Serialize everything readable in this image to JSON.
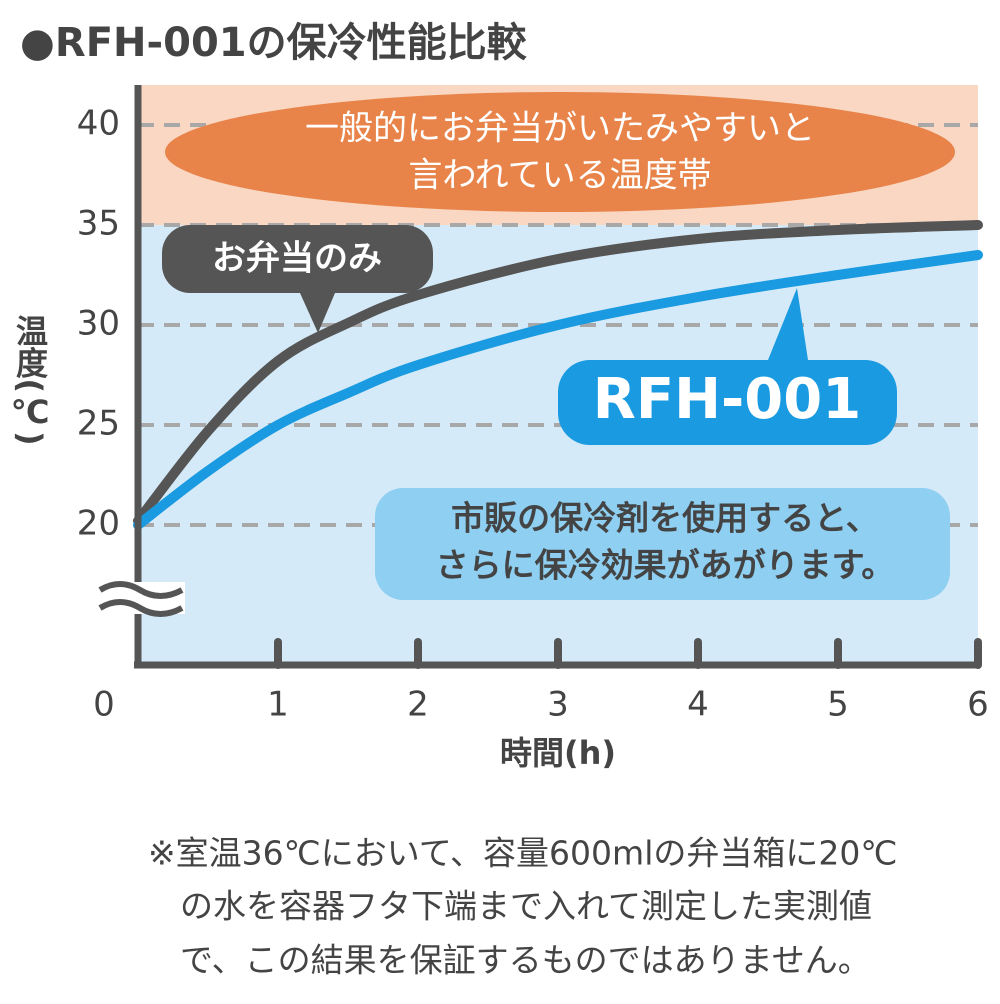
{
  "chart_data": {
    "type": "line",
    "title": "●RFH-001の保冷性能比較",
    "x_label": "時間(h)",
    "y_label": "温度(℃)",
    "xlim": [
      0,
      6
    ],
    "xticks": [
      0,
      1,
      2,
      3,
      4,
      5,
      6
    ],
    "ylim": [
      13,
      42
    ],
    "yticks": [
      20,
      25,
      30,
      35,
      40
    ],
    "grid": true,
    "bands": [
      {
        "from": 35,
        "to": 42,
        "color": "#f9d7c2"
      },
      {
        "from": 13,
        "to": 35,
        "color": "#d5eaf8"
      }
    ],
    "series": [
      {
        "name": "お弁当のみ",
        "color": "#555555",
        "x": [
          0,
          0.5,
          1,
          1.5,
          2,
          3,
          4,
          5,
          6
        ],
        "values": [
          20.2,
          24.7,
          28.2,
          30.1,
          31.5,
          33.3,
          34.3,
          34.75,
          35
        ]
      },
      {
        "name": "RFH-001",
        "color": "#1a9ae0",
        "x": [
          0,
          0.5,
          1,
          1.5,
          2,
          3,
          4,
          5,
          6
        ],
        "values": [
          20,
          22.7,
          25,
          26.6,
          28,
          30,
          31.4,
          32.5,
          33.5
        ]
      }
    ],
    "zone_note": [
      "一般的にお弁当がいたみやすいと",
      "言われている温度帯"
    ],
    "tip": [
      "市販の保冷剤を使用すると、",
      "さらに保冷効果があがります。"
    ],
    "footnote": [
      "※室温36℃において、容量600mlの弁当箱に20℃",
      "の水を容器フタ下端まで入れて測定した実測値",
      "で、この結果を保証するものではありません。"
    ]
  }
}
